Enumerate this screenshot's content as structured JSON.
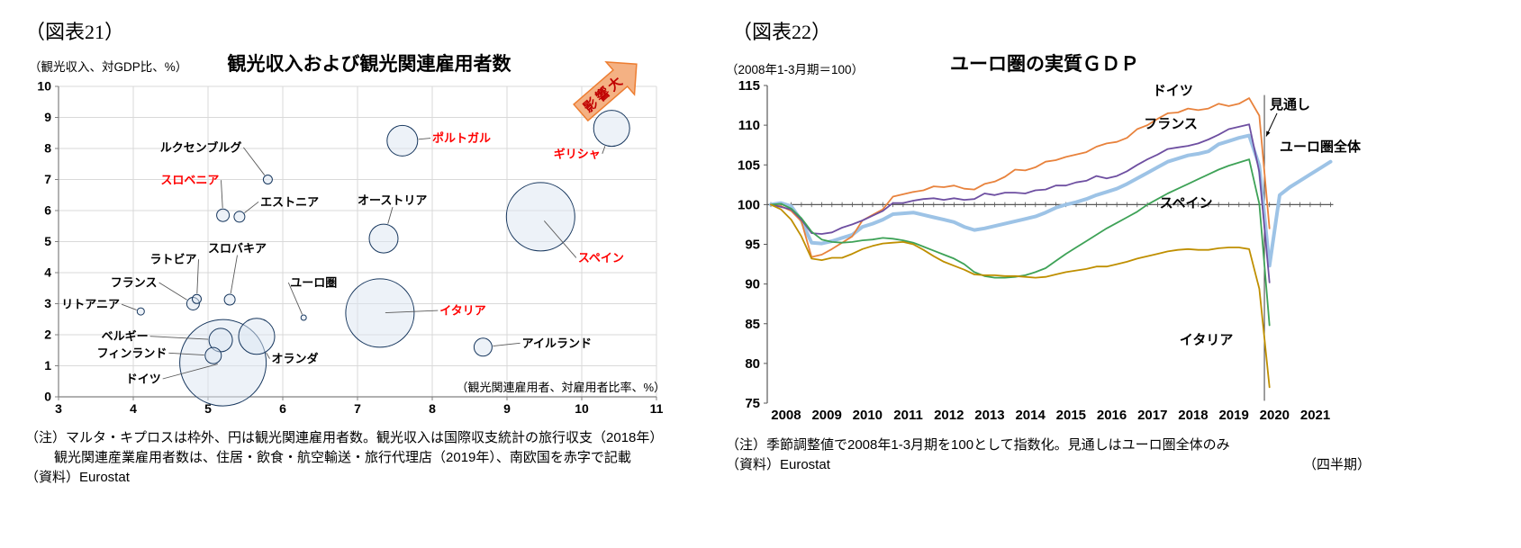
{
  "page": {
    "background": "#ffffff"
  },
  "chart_data": [
    {
      "id": "fig21",
      "type": "scatter",
      "figure_label": "（図表21）",
      "title": "観光収入および観光関連雇用者数",
      "y_unit": "（観光収入、対GDP比、%）",
      "x_unit": "（観光関連雇用者、対雇用者比率、%）",
      "xlim": [
        3,
        11
      ],
      "ylim": [
        0,
        10
      ],
      "x_ticks": [
        3,
        4,
        5,
        6,
        7,
        8,
        9,
        10,
        11
      ],
      "y_ticks": [
        0,
        1,
        2,
        3,
        4,
        5,
        6,
        7,
        8,
        9,
        10
      ],
      "grid": true,
      "bubble_fill": "#dbe5f1",
      "bubble_stroke": "#17375e",
      "red_label_color": "#ff0000",
      "arrow": {
        "label": "影響大",
        "fill": "#f4b183",
        "stroke": "#ed7d31",
        "text_color": "#c00000"
      },
      "points": [
        {
          "name": "ルクセンブルグ",
          "x": 5.8,
          "y": 7.0,
          "r": 5,
          "red": false,
          "lx": 5.45,
          "ly": 7.9,
          "anchor": "end",
          "side": "right"
        },
        {
          "name": "スロベニア",
          "x": 5.2,
          "y": 5.85,
          "r": 7,
          "red": true,
          "lx": 5.15,
          "ly": 6.85,
          "anchor": "end",
          "side": "right"
        },
        {
          "name": "エストニア",
          "x": 5.42,
          "y": 5.8,
          "r": 6,
          "red": false,
          "lx": 5.7,
          "ly": 6.15,
          "anchor": "start",
          "side": "left"
        },
        {
          "name": "ポルトガル",
          "x": 7.6,
          "y": 8.25,
          "r": 17,
          "red": true,
          "lx": 8.0,
          "ly": 8.2,
          "anchor": "start",
          "side": "left"
        },
        {
          "name": "ギリシャ",
          "x": 10.4,
          "y": 8.65,
          "r": 20,
          "red": true,
          "lx": 10.25,
          "ly": 7.7,
          "anchor": "end",
          "side": "right"
        },
        {
          "name": "オーストリア",
          "x": 7.35,
          "y": 5.1,
          "r": 16,
          "red": false,
          "lx": 7.0,
          "ly": 6.2,
          "anchor": "start",
          "side": "bottom"
        },
        {
          "name": "スペイン",
          "x": 9.45,
          "y": 5.8,
          "r": 38,
          "red": true,
          "lx": 9.95,
          "ly": 4.35,
          "anchor": "start",
          "side": "left"
        },
        {
          "name": "ユーロ圏",
          "x": 6.28,
          "y": 2.55,
          "r": 3,
          "red": false,
          "lx": 6.1,
          "ly": 3.55,
          "anchor": "start",
          "side": "left"
        },
        {
          "name": "イタリア",
          "x": 7.3,
          "y": 2.7,
          "r": 38,
          "red": true,
          "lx": 8.1,
          "ly": 2.65,
          "anchor": "start",
          "side": "left"
        },
        {
          "name": "アイルランド",
          "x": 8.68,
          "y": 1.6,
          "r": 10,
          "red": false,
          "lx": 9.2,
          "ly": 1.6,
          "anchor": "start",
          "side": "left"
        },
        {
          "name": "オランダ",
          "x": 5.65,
          "y": 1.95,
          "r": 20,
          "red": false,
          "lx": 5.85,
          "ly": 1.1,
          "anchor": "start",
          "side": "left"
        },
        {
          "name": "ドイツ",
          "x": 5.2,
          "y": 1.1,
          "r": 48,
          "red": false,
          "lx": 3.9,
          "ly": 0.45,
          "anchor": "start",
          "side": "right"
        },
        {
          "name": "フィンランド",
          "x": 5.07,
          "y": 1.33,
          "r": 9,
          "red": false,
          "lx": 4.45,
          "ly": 1.28,
          "anchor": "end",
          "side": "right"
        },
        {
          "name": "ベルギー",
          "x": 5.17,
          "y": 1.83,
          "r": 13,
          "red": false,
          "lx": 4.2,
          "ly": 1.82,
          "anchor": "end",
          "side": "right"
        },
        {
          "name": "フランス",
          "x": 4.8,
          "y": 3.0,
          "r": 7,
          "red": false,
          "lx": 4.32,
          "ly": 3.55,
          "anchor": "end",
          "side": "right"
        },
        {
          "name": "ラトビア",
          "x": 4.85,
          "y": 3.15,
          "r": 5,
          "red": false,
          "lx": 4.85,
          "ly": 4.3,
          "anchor": "end",
          "side": "right"
        },
        {
          "name": "スロバキア",
          "x": 5.29,
          "y": 3.13,
          "r": 6,
          "red": false,
          "lx": 5.0,
          "ly": 4.65,
          "anchor": "start",
          "side": "bottom"
        },
        {
          "name": "リトアニア",
          "x": 4.1,
          "y": 2.75,
          "r": 4,
          "red": false,
          "lx": 3.82,
          "ly": 2.85,
          "anchor": "end",
          "side": "right"
        }
      ],
      "notes": [
        "（注）マルタ・キプロスは枠外、円は観光関連雇用者数。観光収入は国際収支統計の旅行収支（2018年）",
        "観光関連産業雇用者数は、住居・飲食・航空輸送・旅行代理店（2019年）、南欧国を赤字で記載"
      ],
      "source": "（資料）Eurostat"
    },
    {
      "id": "fig22",
      "type": "line",
      "figure_label": "（図表22）",
      "title": "ユーロ圏の実質ＧＤＰ",
      "subtitle": "（2008年1-3月期＝100）",
      "ylim": [
        75,
        115
      ],
      "y_ticks": [
        75,
        80,
        85,
        90,
        95,
        100,
        105,
        110,
        115
      ],
      "baseline": 100,
      "frequency": "quarterly",
      "x_start": "2008Q1",
      "years": [
        2008,
        2009,
        2010,
        2011,
        2012,
        2013,
        2014,
        2015,
        2016,
        2017,
        2018,
        2019,
        2020,
        2021
      ],
      "forecast": {
        "label": "見通し",
        "divider_index": 48.5,
        "note": "見通しはユーロ圏全体のみ"
      },
      "series": [
        {
          "name": "ドイツ",
          "color": "#e8823c",
          "width": 1.8,
          "values": [
            100,
            99.8,
            99.2,
            97.9,
            93.4,
            93.7,
            94.4,
            95.2,
            96,
            98,
            98.7,
            99.4,
            101,
            101.3,
            101.6,
            101.8,
            102.3,
            102.2,
            102.4,
            102,
            101.9,
            102.6,
            102.9,
            103.5,
            104.4,
            104.3,
            104.7,
            105.4,
            105.6,
            106,
            106.3,
            106.6,
            107.3,
            107.7,
            107.9,
            108.4,
            109.5,
            110,
            110.8,
            111.5,
            111.6,
            112.1,
            111.9,
            112.1,
            112.7,
            112.4,
            112.7,
            113.4,
            111.2,
            97
          ]
        },
        {
          "name": "フランス",
          "color": "#6e4fa1",
          "width": 1.8,
          "values": [
            100,
            99.7,
            99.4,
            98.1,
            96.4,
            96.3,
            96.5,
            97.1,
            97.5,
            98,
            98.6,
            99.2,
            100.2,
            100.2,
            100.5,
            100.7,
            100.8,
            100.6,
            100.8,
            100.6,
            100.7,
            101.4,
            101.2,
            101.5,
            101.5,
            101.4,
            101.8,
            101.9,
            102.4,
            102.4,
            102.8,
            103,
            103.6,
            103.3,
            103.6,
            104.2,
            105,
            105.7,
            106.3,
            107,
            107.2,
            107.4,
            107.7,
            108.2,
            108.8,
            109.5,
            109.8,
            110.1,
            104.1,
            90.2
          ]
        },
        {
          "name": "ユーロ圏全体",
          "color": "#9dc3e6",
          "width": 4,
          "values": [
            100,
            100.2,
            99.8,
            98,
            95.2,
            95.1,
            95.4,
            95.8,
            96.2,
            97.2,
            97.6,
            98.1,
            98.8,
            98.9,
            99,
            98.7,
            98.4,
            98.1,
            97.8,
            97.2,
            96.8,
            97,
            97.3,
            97.6,
            97.9,
            98.2,
            98.5,
            99,
            99.6,
            100,
            100.3,
            100.7,
            101.2,
            101.6,
            102,
            102.6,
            103.3,
            104,
            104.7,
            105.4,
            105.8,
            106.2,
            106.4,
            106.7,
            107.6,
            108,
            108.4,
            108.7,
            104.9,
            92.3,
            101.2,
            102.2,
            103,
            103.8,
            104.6,
            105.4
          ]
        },
        {
          "name": "スペイン",
          "color": "#3ea257",
          "width": 1.8,
          "values": [
            100,
            100.1,
            99.5,
            98.3,
            96.6,
            95.6,
            95.3,
            95.2,
            95.3,
            95.5,
            95.6,
            95.8,
            95.7,
            95.5,
            95.2,
            94.7,
            94.2,
            93.7,
            93.2,
            92.5,
            91.5,
            91,
            90.8,
            90.8,
            90.9,
            91.1,
            91.5,
            92,
            92.9,
            93.8,
            94.6,
            95.4,
            96.2,
            97,
            97.7,
            98.4,
            99.1,
            100,
            100.7,
            101.4,
            102,
            102.6,
            103.2,
            103.8,
            104.4,
            104.9,
            105.3,
            105.7,
            100.1,
            84.8
          ]
        },
        {
          "name": "イタリア",
          "color": "#bf8f00",
          "width": 1.8,
          "values": [
            100,
            99.4,
            98.1,
            96,
            93.2,
            93,
            93.3,
            93.3,
            93.8,
            94.4,
            94.8,
            95.1,
            95.2,
            95.3,
            95,
            94.3,
            93.5,
            92.8,
            92.3,
            91.8,
            91.2,
            91.1,
            91.1,
            91,
            91,
            90.9,
            90.8,
            90.9,
            91.2,
            91.5,
            91.7,
            91.9,
            92.2,
            92.2,
            92.5,
            92.8,
            93.2,
            93.5,
            93.8,
            94.1,
            94.3,
            94.4,
            94.3,
            94.3,
            94.5,
            94.6,
            94.6,
            94.4,
            89.4,
            77
          ]
        }
      ],
      "series_labels": [
        {
          "text": "ドイツ",
          "xi": 39.5,
          "v": 114.4,
          "anchor": "middle"
        },
        {
          "text": "フランス",
          "xi": 39.3,
          "v": 110.2,
          "anchor": "middle"
        },
        {
          "text": "ユーロ圏全体",
          "xi": 50.0,
          "v": 107.3,
          "anchor": "start"
        },
        {
          "text": "スペイン",
          "xi": 40.8,
          "v": 100.2,
          "anchor": "middle"
        },
        {
          "text": "イタリア",
          "xi": 42.8,
          "v": 83.0,
          "anchor": "middle"
        }
      ],
      "notes": [
        "（注）季節調整値で2008年1-3月期を100として指数化。見通しはユーロ圏全体のみ"
      ],
      "source": "（資料）Eurostat",
      "x_axis_note": "（四半期）"
    }
  ]
}
